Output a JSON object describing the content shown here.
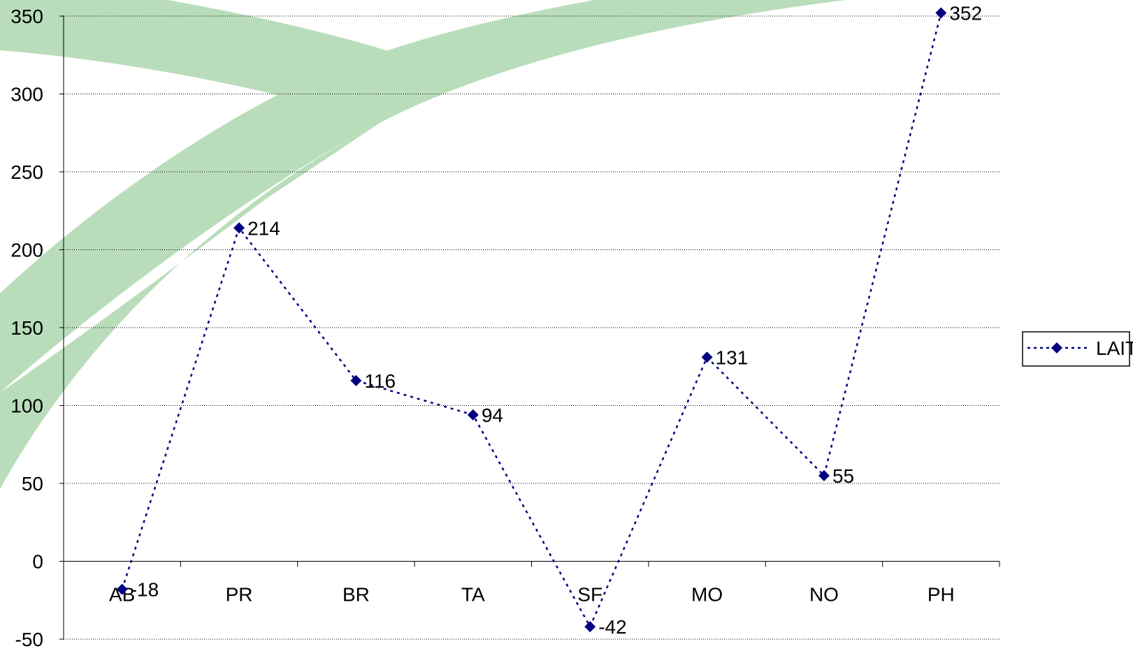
{
  "chart_data": {
    "type": "line",
    "categories": [
      "AB",
      "PR",
      "BR",
      "TA",
      "SF",
      "MO",
      "NO",
      "PH"
    ],
    "series": [
      {
        "name": "LAIT",
        "values": [
          -18,
          214,
          116,
          94,
          -42,
          131,
          55,
          352
        ],
        "color": "#000080",
        "line_style": "dotted",
        "marker": "diamond"
      }
    ],
    "data_labels": [
      "-18",
      "214",
      "116",
      "94",
      "-42",
      "131",
      "55",
      "352"
    ],
    "y_ticks": [
      350,
      300,
      250,
      200,
      150,
      100,
      50,
      0,
      -50
    ],
    "ylim": [
      -50,
      350
    ],
    "title": "",
    "xlabel": "",
    "ylabel": "",
    "grid": "horizontal dotted",
    "legend_position": "right",
    "background_decoration": {
      "name": "green-swoosh-decoration",
      "color": "#b9ddbb"
    }
  }
}
